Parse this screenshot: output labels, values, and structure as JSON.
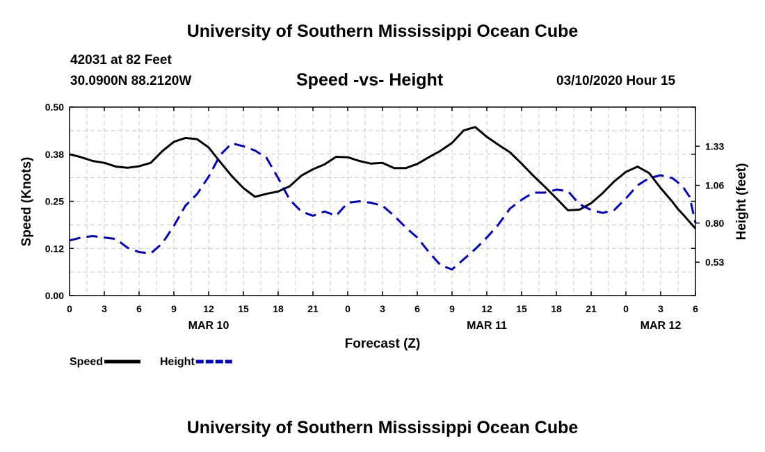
{
  "header": {
    "title_top": "University of Southern Mississippi Ocean Cube",
    "station": "42031 at 82 Feet",
    "coords": "30.0900N 88.2120W",
    "subtitle": "Speed -vs- Height",
    "datetime": "03/10/2020 Hour 15",
    "title_bottom": "University of Southern Mississippi Ocean Cube"
  },
  "chart_data": {
    "type": "line",
    "title": "Speed -vs- Height",
    "xlabel": "Forecast (Z)",
    "ylabel_left": "Speed (Knots)",
    "ylabel_right": "Height (feet)",
    "x_range": [
      0,
      54
    ],
    "x_ticks": [
      0,
      3,
      6,
      9,
      12,
      15,
      18,
      21,
      24,
      27,
      30,
      33,
      36,
      39,
      42,
      45,
      48,
      51,
      54
    ],
    "x_tick_labels": [
      "0",
      "3",
      "6",
      "9",
      "12",
      "15",
      "18",
      "21",
      "0",
      "3",
      "6",
      "9",
      "12",
      "15",
      "18",
      "21",
      "0",
      "3",
      "6"
    ],
    "x_minor_grid": [
      0,
      1.5,
      3,
      4.5,
      6,
      7.5,
      9,
      10.5,
      12,
      13.5,
      15,
      16.5,
      18,
      19.5,
      21,
      22.5,
      24,
      25.5,
      27,
      28.5,
      30,
      31.5,
      33,
      34.5,
      36,
      37.5,
      39,
      40.5,
      42,
      43.5,
      45,
      46.5,
      48,
      49.5,
      51,
      52.5,
      54
    ],
    "date_labels": [
      {
        "x": 12,
        "label": "MAR 10"
      },
      {
        "x": 36,
        "label": "MAR 11"
      },
      {
        "x": 51,
        "label": "MAR 12"
      }
    ],
    "y_left_range": [
      0,
      0.5
    ],
    "y_left_ticks": [
      0,
      0.125,
      0.25,
      0.375,
      0.5
    ],
    "y_left_tick_labels": [
      "0.00",
      "0.12",
      "0.25",
      "0.38",
      "0.50"
    ],
    "y_right_range": [
      0.3,
      1.6
    ],
    "y_right_ticks": [
      0.53,
      0.8,
      1.06,
      1.33
    ],
    "y_right_tick_labels": [
      "0.53",
      "0.80",
      "1.06",
      "1.33"
    ],
    "grid": true,
    "legend_position": "bottom-left",
    "series": [
      {
        "name": "Speed",
        "axis": "left",
        "color": "#000000",
        "dash": "solid",
        "x": [
          0,
          1,
          2,
          3,
          4,
          5,
          6,
          7,
          8,
          9,
          10,
          11,
          12,
          13,
          14,
          15,
          16,
          17,
          18,
          19,
          20,
          21,
          22,
          23,
          24,
          25,
          26,
          27,
          28,
          29,
          30,
          31,
          32,
          33,
          34,
          35,
          36,
          37,
          38,
          39,
          40,
          41,
          42,
          43,
          44,
          45,
          46,
          47,
          48,
          49,
          50,
          51,
          52,
          52.5,
          53,
          53.5,
          54
        ],
        "values": [
          0.375,
          0.367,
          0.357,
          0.352,
          0.342,
          0.339,
          0.343,
          0.352,
          0.383,
          0.408,
          0.418,
          0.415,
          0.393,
          0.354,
          0.317,
          0.285,
          0.262,
          0.27,
          0.276,
          0.29,
          0.318,
          0.335,
          0.348,
          0.368,
          0.367,
          0.357,
          0.35,
          0.352,
          0.338,
          0.338,
          0.349,
          0.367,
          0.384,
          0.405,
          0.438,
          0.447,
          0.421,
          0.4,
          0.38,
          0.35,
          0.318,
          0.289,
          0.258,
          0.226,
          0.228,
          0.245,
          0.272,
          0.303,
          0.328,
          0.342,
          0.325,
          0.285,
          0.249,
          0.229,
          0.213,
          0.195,
          0.178
        ]
      },
      {
        "name": "Height",
        "axis": "right",
        "color": "#0000c8",
        "dash": "dashed",
        "x": [
          0,
          1,
          2,
          3,
          4,
          5,
          6,
          7,
          8,
          9,
          10,
          11,
          12,
          13,
          14,
          15,
          16,
          17,
          18,
          19,
          20,
          21,
          22,
          23,
          24,
          25,
          26,
          27,
          28,
          29,
          30,
          31,
          32,
          33,
          34,
          35,
          36,
          37,
          38,
          39,
          40,
          41,
          42,
          43,
          44,
          45,
          46,
          47,
          48,
          49,
          50,
          51,
          52,
          52.5,
          53,
          53.5,
          54
        ],
        "values": [
          0.68,
          0.7,
          0.71,
          0.7,
          0.69,
          0.63,
          0.6,
          0.59,
          0.66,
          0.78,
          0.92,
          1.0,
          1.12,
          1.27,
          1.35,
          1.33,
          1.3,
          1.25,
          1.11,
          0.96,
          0.88,
          0.85,
          0.88,
          0.85,
          0.94,
          0.95,
          0.94,
          0.92,
          0.85,
          0.77,
          0.7,
          0.6,
          0.51,
          0.48,
          0.55,
          0.62,
          0.7,
          0.79,
          0.9,
          0.96,
          1.01,
          1.01,
          1.03,
          1.02,
          0.93,
          0.89,
          0.87,
          0.89,
          0.97,
          1.06,
          1.11,
          1.13,
          1.11,
          1.08,
          1.04,
          0.98,
          0.8
        ]
      }
    ],
    "legend": [
      {
        "label": "Speed",
        "color": "#000000",
        "dash": "solid"
      },
      {
        "label": "Height",
        "color": "#0000c8",
        "dash": "dashed"
      }
    ]
  }
}
